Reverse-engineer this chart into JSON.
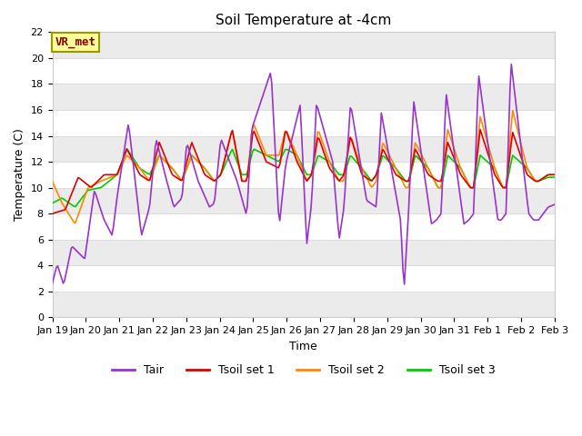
{
  "title": "Soil Temperature at -4cm",
  "xlabel": "Time",
  "ylabel": "Temperature (C)",
  "ylim": [
    0,
    22
  ],
  "figure_bg": "#ffffff",
  "plot_bg": "#ffffff",
  "grid_color": "#dddddd",
  "alt_band_color": "#ebebeb",
  "colors": {
    "Tair": "#9933cc",
    "Tsoil_set1": "#dd0000",
    "Tsoil_set2": "#ff8800",
    "Tsoil_set3": "#00cc00"
  },
  "legend_labels": [
    "Tair",
    "Tsoil set 1",
    "Tsoil set 2",
    "Tsoil set 3"
  ],
  "annotation_text": "VR_met",
  "annotation_bg": "#ffff99",
  "annotation_border": "#999900",
  "num_days": 15.5,
  "x_tick_labels": [
    "Jan 19",
    "Jan 20",
    "Jan 21",
    "Jan 22",
    "Jan 23",
    "Jan 24",
    "Jan 25",
    "Jan 26",
    "Jan 27",
    "Jan 28",
    "Jan 29",
    "Jan 30",
    "Jan 31",
    "Feb 1",
    "Feb 2",
    "Feb 3"
  ],
  "yticks": [
    0,
    2,
    4,
    6,
    8,
    10,
    12,
    14,
    16,
    18,
    20,
    22
  ],
  "title_fontsize": 11,
  "axis_fontsize": 9,
  "tick_fontsize": 8,
  "legend_fontsize": 9,
  "line_width": 1.2,
  "tair_kp_t": [
    0,
    0.15,
    0.35,
    0.6,
    1.0,
    1.3,
    1.6,
    1.85,
    2.0,
    2.35,
    2.75,
    3.0,
    3.2,
    3.5,
    3.75,
    4.0,
    4.15,
    4.5,
    4.85,
    5.0,
    5.2,
    5.7,
    6.0,
    6.15,
    6.75,
    7.0,
    7.2,
    7.65,
    7.85,
    8.0,
    8.15,
    8.65,
    8.85,
    9.0,
    9.2,
    9.7,
    10.0,
    10.15,
    10.75,
    10.85,
    11.0,
    11.15,
    11.7,
    11.85,
    12.0,
    12.15,
    12.7,
    12.85,
    13.0,
    13.15,
    13.75,
    13.85,
    14.0,
    14.15,
    14.7,
    14.85,
    15.0,
    15.3,
    15.5
  ],
  "tair_kp_v": [
    2.6,
    4.1,
    2.5,
    5.5,
    4.5,
    9.8,
    7.5,
    6.3,
    9.3,
    15.0,
    6.3,
    8.5,
    13.8,
    10.8,
    8.5,
    9.2,
    13.5,
    10.5,
    8.5,
    8.8,
    13.8,
    10.5,
    7.8,
    14.5,
    19.0,
    7.0,
    11.8,
    16.4,
    5.6,
    8.8,
    16.5,
    12.0,
    6.0,
    8.5,
    16.5,
    9.0,
    8.5,
    15.8,
    7.4,
    2.0,
    8.5,
    16.7,
    7.2,
    7.5,
    8.0,
    17.3,
    7.2,
    7.5,
    8.0,
    18.8,
    7.5,
    7.5,
    8.0,
    19.8,
    8.0,
    7.5,
    7.5,
    8.5,
    8.7
  ],
  "s1_kp_t": [
    0,
    0.4,
    0.8,
    1.2,
    1.6,
    2.0,
    2.3,
    2.7,
    3.0,
    3.3,
    3.7,
    4.0,
    4.3,
    4.7,
    5.0,
    5.2,
    5.55,
    5.85,
    6.0,
    6.2,
    6.6,
    7.0,
    7.2,
    7.55,
    7.85,
    8.0,
    8.2,
    8.55,
    8.85,
    9.0,
    9.2,
    9.55,
    9.85,
    10.0,
    10.2,
    10.6,
    10.9,
    11.0,
    11.2,
    11.6,
    11.9,
    12.0,
    12.2,
    12.6,
    12.9,
    13.0,
    13.2,
    13.65,
    13.9,
    14.0,
    14.2,
    14.65,
    14.9,
    15.0,
    15.3,
    15.5
  ],
  "s1_kp_v": [
    8.0,
    8.3,
    10.8,
    10.0,
    11.0,
    11.0,
    13.0,
    11.0,
    10.5,
    13.5,
    11.0,
    10.5,
    13.5,
    11.0,
    10.5,
    11.0,
    14.5,
    10.5,
    10.5,
    14.5,
    12.0,
    11.5,
    14.5,
    12.0,
    10.5,
    11.0,
    14.0,
    11.5,
    10.5,
    11.0,
    14.0,
    11.0,
    10.5,
    11.0,
    13.0,
    11.0,
    10.5,
    10.5,
    13.0,
    11.0,
    10.5,
    10.5,
    13.5,
    11.0,
    10.0,
    10.0,
    14.5,
    11.0,
    10.0,
    10.0,
    14.3,
    11.0,
    10.5,
    10.5,
    11.0,
    11.0
  ],
  "s2_kp_t": [
    0,
    0.3,
    0.7,
    1.1,
    1.5,
    2.0,
    2.3,
    2.7,
    3.0,
    3.3,
    3.7,
    4.0,
    4.3,
    4.7,
    5.0,
    5.2,
    5.55,
    5.85,
    6.0,
    6.2,
    6.6,
    7.0,
    7.2,
    7.55,
    7.85,
    8.0,
    8.2,
    8.55,
    8.85,
    9.0,
    9.2,
    9.55,
    9.85,
    10.0,
    10.2,
    10.6,
    10.9,
    11.0,
    11.2,
    11.6,
    11.9,
    12.0,
    12.2,
    12.6,
    12.9,
    13.0,
    13.2,
    13.65,
    13.9,
    14.0,
    14.2,
    14.65,
    14.9,
    15.0,
    15.3,
    15.5
  ],
  "s2_kp_v": [
    10.5,
    8.8,
    7.2,
    10.0,
    10.5,
    11.0,
    12.5,
    11.5,
    10.5,
    12.5,
    11.5,
    10.5,
    12.5,
    11.5,
    10.5,
    11.0,
    14.5,
    10.5,
    10.5,
    15.0,
    12.5,
    12.5,
    14.5,
    12.5,
    10.5,
    11.0,
    14.5,
    12.0,
    10.5,
    10.5,
    14.0,
    11.5,
    10.0,
    10.5,
    13.5,
    11.5,
    10.0,
    10.0,
    13.5,
    11.5,
    10.0,
    10.0,
    14.5,
    11.5,
    10.0,
    10.0,
    15.5,
    11.5,
    10.0,
    10.0,
    16.0,
    11.5,
    10.5,
    10.5,
    11.0,
    11.0
  ],
  "s3_kp_t": [
    0,
    0.3,
    0.7,
    1.1,
    1.5,
    2.0,
    2.3,
    2.7,
    3.0,
    3.3,
    3.7,
    4.0,
    4.3,
    4.7,
    5.0,
    5.2,
    5.55,
    5.85,
    6.0,
    6.2,
    6.6,
    7.0,
    7.2,
    7.55,
    7.85,
    8.0,
    8.2,
    8.55,
    8.85,
    9.0,
    9.2,
    9.55,
    9.85,
    10.0,
    10.2,
    10.6,
    10.9,
    11.0,
    11.2,
    11.6,
    11.9,
    12.0,
    12.2,
    12.6,
    12.9,
    13.0,
    13.2,
    13.65,
    13.9,
    14.0,
    14.2,
    14.65,
    14.9,
    15.0,
    15.3,
    15.5
  ],
  "s3_kp_v": [
    8.8,
    9.2,
    8.5,
    9.8,
    10.0,
    11.0,
    13.0,
    11.5,
    11.0,
    12.5,
    11.5,
    10.5,
    12.5,
    11.5,
    10.5,
    11.0,
    13.0,
    11.0,
    11.0,
    13.0,
    12.5,
    12.0,
    13.0,
    12.5,
    11.0,
    11.0,
    12.5,
    12.0,
    11.0,
    11.0,
    12.5,
    11.5,
    10.5,
    11.0,
    12.5,
    11.5,
    10.5,
    10.5,
    12.5,
    11.5,
    10.0,
    10.0,
    12.5,
    11.5,
    10.0,
    10.0,
    12.5,
    11.5,
    10.0,
    10.0,
    12.5,
    11.5,
    10.5,
    10.5,
    10.8,
    10.8
  ]
}
